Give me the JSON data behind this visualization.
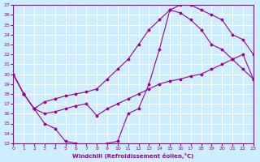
{
  "xlabel": "Windchill (Refroidissement éolien,°C)",
  "ylabel": "",
  "xlim": [
    0,
    23
  ],
  "ylim": [
    13,
    27
  ],
  "xticks": [
    0,
    1,
    2,
    3,
    4,
    5,
    6,
    7,
    8,
    9,
    10,
    11,
    12,
    13,
    14,
    15,
    16,
    17,
    18,
    19,
    20,
    21,
    22,
    23
  ],
  "yticks": [
    13,
    14,
    15,
    16,
    17,
    18,
    19,
    20,
    21,
    22,
    23,
    24,
    25,
    26,
    27
  ],
  "bg_color": "#cceeff",
  "line_color": "#990099",
  "grid_color": "#ffffff",
  "line1_x": [
    0,
    1,
    2,
    3,
    4,
    5,
    6,
    7,
    8,
    9,
    10,
    11,
    12,
    13,
    14,
    15,
    16,
    17,
    18,
    19,
    20,
    21,
    22,
    23
  ],
  "line1_y": [
    20.0,
    18.0,
    16.5,
    15.0,
    14.5,
    13.2,
    13.0,
    12.8,
    12.8,
    13.0,
    13.2,
    16.0,
    16.5,
    19.0,
    22.5,
    26.5,
    27.0,
    27.0,
    26.5,
    26.0,
    25.5,
    24.0,
    23.5,
    22.0
  ],
  "line2_x": [
    0,
    1,
    2,
    3,
    4,
    5,
    6,
    7,
    8,
    9,
    10,
    11,
    12,
    13,
    14,
    15,
    16,
    17,
    18,
    19,
    20,
    21,
    22,
    23
  ],
  "line2_y": [
    20.0,
    18.0,
    16.5,
    17.2,
    17.5,
    17.8,
    18.0,
    18.2,
    18.5,
    19.5,
    20.5,
    21.5,
    23.0,
    24.5,
    25.5,
    26.5,
    26.2,
    25.5,
    24.5,
    23.0,
    22.5,
    21.5,
    20.5,
    19.5
  ],
  "line3_x": [
    0,
    1,
    2,
    3,
    4,
    5,
    6,
    7,
    8,
    9,
    10,
    11,
    12,
    13,
    14,
    15,
    16,
    17,
    18,
    19,
    20,
    21,
    22,
    23
  ],
  "line3_y": [
    20.0,
    18.0,
    16.5,
    16.0,
    16.2,
    16.5,
    16.8,
    17.0,
    15.8,
    16.5,
    17.0,
    17.5,
    18.0,
    18.5,
    19.0,
    19.3,
    19.5,
    19.8,
    20.0,
    20.5,
    21.0,
    21.5,
    22.0,
    19.5
  ]
}
